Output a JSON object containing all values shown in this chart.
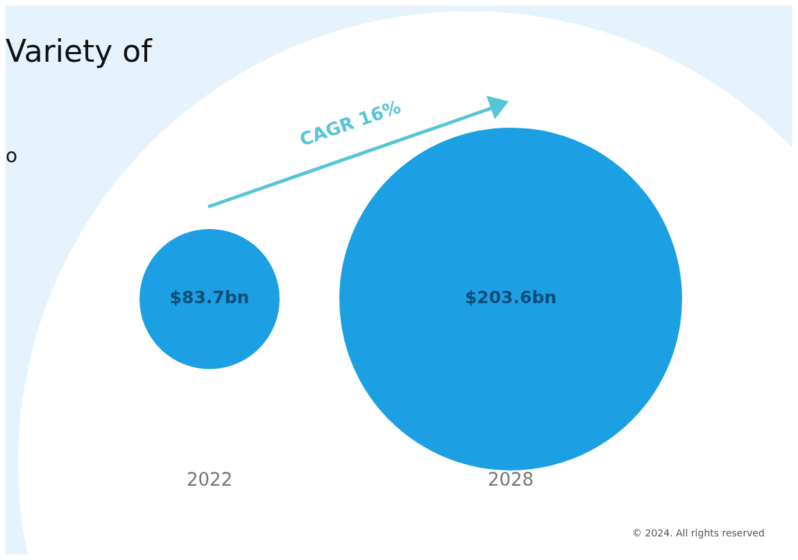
{
  "chart_data": {
    "type": "other",
    "title": "Variety of",
    "categories": [
      "2022",
      "2028"
    ],
    "series": [
      {
        "color": "#1ca0e3",
        "values": [
          83.7,
          203.6
        ],
        "value_labels": [
          "$83.7bn",
          "$203.6bn"
        ]
      }
    ],
    "annotations": [
      "o",
      "CAGR 16%",
      "© 2024. All rights reserved"
    ]
  }
}
